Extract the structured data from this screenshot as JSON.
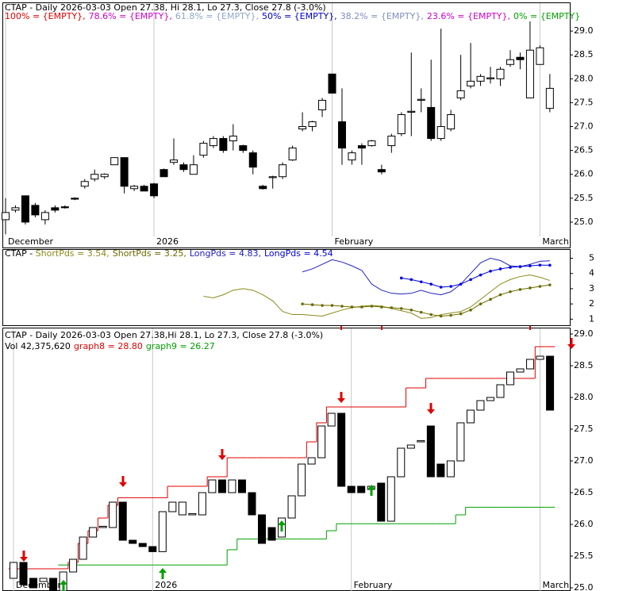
{
  "chart_data": [
    {
      "type": "candlestick",
      "title": "CTAP - Daily 2026-03-03 Open 27.38, Hi 28.1, Lo 27.3, Close 27.8 (-3.0%)",
      "legend": [
        {
          "label": "100% = {EMPTY},",
          "color": "#e00000"
        },
        {
          "label": "78.6% = {EMPTY},",
          "color": "#cc00cc"
        },
        {
          "label": "61.8% = {EMPTY},",
          "color": "#8fa8c8"
        },
        {
          "label": "50% = {EMPTY},",
          "color": "#0000cc"
        },
        {
          "label": "38.2% = {EMPTY},",
          "color": "#7f8fbf"
        },
        {
          "label": "23.6% = {EMPTY},",
          "color": "#cc00cc"
        },
        {
          "label": "0% = {EMPTY}",
          "color": "#00a000"
        }
      ],
      "categories": [
        "December",
        null,
        null,
        null,
        null,
        null,
        null,
        null,
        null,
        null,
        null,
        null,
        null,
        null,
        null,
        "2026",
        null,
        null,
        null,
        null,
        null,
        null,
        null,
        null,
        null,
        null,
        null,
        null,
        null,
        null,
        null,
        null,
        null,
        "February",
        null,
        null,
        null,
        null,
        null,
        null,
        null,
        null,
        null,
        null,
        null,
        null,
        null,
        null,
        null,
        null,
        null,
        null,
        null,
        null,
        "March",
        null
      ],
      "open": [
        25.05,
        25.25,
        25.55,
        25.35,
        25.05,
        25.3,
        25.32,
        25.5,
        25.75,
        25.9,
        25.95,
        26.2,
        26.35,
        25.7,
        25.75,
        25.8,
        26.1,
        26.25,
        26.2,
        26.0,
        26.4,
        26.6,
        26.75,
        26.7,
        26.6,
        26.45,
        25.75,
        25.93,
        25.95,
        26.3,
        26.95,
        27.0,
        27.35,
        28.1,
        27.1,
        26.3,
        26.6,
        26.6,
        26.1,
        26.6,
        26.85,
        27.3,
        27.55,
        27.4,
        26.75,
        26.95,
        27.6,
        27.85,
        27.95,
        28.0,
        28.0,
        28.3,
        28.45,
        27.6,
        28.3,
        27.38
      ],
      "high": [
        25.5,
        25.35,
        25.55,
        25.4,
        25.25,
        25.35,
        25.35,
        25.52,
        25.9,
        26.1,
        26.02,
        26.35,
        26.35,
        25.78,
        25.78,
        25.82,
        26.12,
        26.75,
        26.25,
        26.4,
        26.7,
        26.8,
        26.8,
        27.05,
        26.62,
        26.5,
        25.78,
        25.97,
        26.25,
        26.6,
        27.3,
        27.12,
        27.6,
        28.1,
        27.8,
        26.5,
        26.65,
        26.72,
        26.2,
        26.85,
        27.3,
        28.55,
        27.8,
        28.4,
        29.05,
        27.35,
        28.5,
        28.75,
        28.1,
        28.25,
        28.25,
        28.6,
        28.55,
        29.2,
        28.7,
        28.1
      ],
      "low": [
        24.75,
        25.2,
        24.95,
        25.1,
        24.95,
        25.2,
        25.28,
        25.46,
        25.7,
        25.85,
        25.9,
        26.2,
        25.6,
        25.65,
        25.65,
        25.5,
        25.95,
        26.2,
        26.05,
        26.0,
        26.35,
        26.55,
        26.45,
        26.5,
        26.45,
        26.0,
        25.68,
        25.7,
        25.9,
        26.28,
        26.9,
        26.9,
        27.2,
        27.7,
        26.2,
        26.2,
        26.2,
        26.58,
        26.0,
        26.45,
        26.8,
        26.8,
        27.3,
        26.7,
        26.7,
        26.9,
        27.55,
        27.8,
        27.85,
        27.9,
        27.85,
        28.25,
        28.2,
        27.6,
        28.3,
        27.3
      ],
      "close": [
        25.2,
        25.3,
        25.0,
        25.15,
        25.2,
        25.25,
        25.3,
        25.48,
        25.85,
        26.0,
        26.0,
        26.35,
        25.75,
        25.75,
        25.65,
        25.55,
        25.95,
        26.3,
        26.1,
        26.2,
        26.65,
        26.75,
        26.5,
        26.8,
        26.5,
        26.15,
        25.7,
        25.95,
        26.2,
        26.55,
        27.0,
        27.1,
        27.55,
        27.7,
        26.55,
        26.45,
        26.55,
        26.7,
        26.05,
        26.8,
        27.25,
        27.32,
        27.57,
        26.75,
        27.0,
        27.25,
        27.75,
        27.95,
        28.05,
        28.02,
        28.2,
        28.4,
        28.4,
        28.6,
        28.65,
        27.8
      ],
      "ylim": [
        24.7,
        29.6
      ],
      "yticks": [
        {
          "value": 25,
          "label": "25.0"
        },
        {
          "value": 25.5,
          "label": "25.5"
        },
        {
          "value": 26,
          "label": "26.0"
        },
        {
          "value": 26.5,
          "label": "26.5"
        },
        {
          "value": 27,
          "label": "27.0"
        },
        {
          "value": 27.5,
          "label": "27.5"
        },
        {
          "value": 28,
          "label": "28.0"
        },
        {
          "value": 28.5,
          "label": "28.5"
        },
        {
          "value": 29,
          "label": "29.0"
        }
      ]
    },
    {
      "type": "line",
      "title": "CTAP - ",
      "series": [
        {
          "name": "ShortPds = 3.54,",
          "color": "#8a8a1a",
          "markers": false,
          "values": [
            null,
            null,
            null,
            null,
            null,
            null,
            null,
            null,
            null,
            null,
            null,
            null,
            null,
            null,
            null,
            null,
            null,
            null,
            null,
            null,
            2.5,
            2.4,
            2.6,
            2.9,
            3.0,
            2.9,
            2.6,
            2.2,
            1.5,
            1.3,
            1.3,
            1.25,
            1.2,
            1.4,
            1.6,
            1.75,
            1.85,
            1.9,
            1.85,
            1.7,
            1.55,
            1.4,
            1.05,
            1.1,
            1.3,
            1.4,
            1.5,
            1.8,
            2.3,
            2.8,
            3.3,
            3.6,
            3.8,
            3.9,
            3.75,
            3.54
          ]
        },
        {
          "name": "ShortPds = 3.25,",
          "color": "#6b6b00",
          "markers": true,
          "values": [
            null,
            null,
            null,
            null,
            null,
            null,
            null,
            null,
            null,
            null,
            null,
            null,
            null,
            null,
            null,
            null,
            null,
            null,
            null,
            null,
            null,
            null,
            null,
            null,
            null,
            null,
            null,
            null,
            null,
            null,
            2.0,
            1.95,
            1.9,
            1.9,
            1.85,
            1.8,
            1.8,
            1.85,
            1.8,
            1.75,
            1.7,
            1.6,
            1.45,
            1.3,
            1.2,
            1.25,
            1.35,
            1.6,
            2.0,
            2.3,
            2.6,
            2.8,
            2.95,
            3.05,
            3.15,
            3.25
          ]
        },
        {
          "name": "LongPds = 4.83,",
          "color": "#2020c0",
          "markers": false,
          "values": [
            null,
            null,
            null,
            null,
            null,
            null,
            null,
            null,
            null,
            null,
            null,
            null,
            null,
            null,
            null,
            null,
            null,
            null,
            null,
            null,
            null,
            null,
            null,
            null,
            null,
            null,
            null,
            null,
            null,
            null,
            4.1,
            4.3,
            4.6,
            4.9,
            4.75,
            4.5,
            4.2,
            3.3,
            2.9,
            2.7,
            2.65,
            2.7,
            2.9,
            2.7,
            2.6,
            2.8,
            3.3,
            4.0,
            4.7,
            5.0,
            4.85,
            4.5,
            4.45,
            4.6,
            4.8,
            4.83
          ]
        },
        {
          "name": "LongPds = 4.54",
          "color": "#0000e0",
          "markers": true,
          "values": [
            null,
            null,
            null,
            null,
            null,
            null,
            null,
            null,
            null,
            null,
            null,
            null,
            null,
            null,
            null,
            null,
            null,
            null,
            null,
            null,
            null,
            null,
            null,
            null,
            null,
            null,
            null,
            null,
            null,
            null,
            null,
            null,
            null,
            null,
            null,
            null,
            null,
            null,
            null,
            null,
            3.7,
            3.6,
            3.45,
            3.3,
            3.1,
            3.15,
            3.3,
            3.6,
            3.9,
            4.15,
            4.3,
            4.4,
            4.45,
            4.5,
            4.55,
            4.54
          ]
        }
      ],
      "ylim": [
        0.6,
        5.6
      ],
      "yticks": [
        1,
        2,
        3,
        4,
        5
      ]
    },
    {
      "type": "bodies",
      "title": "CTAP - Daily 2026-03-03 Open 27.38,Hi 28.1, Lo 27.3, Close 27.8 (-3.0%)",
      "subtitle": "Vol 42,375,620",
      "categories": [
        "December",
        null,
        null,
        null,
        null,
        null,
        null,
        null,
        null,
        null,
        null,
        null,
        null,
        null,
        "2026",
        null,
        null,
        null,
        null,
        null,
        null,
        null,
        null,
        null,
        null,
        null,
        null,
        null,
        null,
        null,
        null,
        null,
        null,
        null,
        "February",
        null,
        null,
        null,
        null,
        null,
        null,
        null,
        null,
        null,
        null,
        null,
        null,
        null,
        null,
        null,
        null,
        null,
        null,
        "March",
        null
      ],
      "open": [
        25.15,
        25.4,
        25.15,
        25.1,
        25.15,
        24.95,
        25.25,
        25.45,
        25.8,
        25.95,
        25.95,
        26.35,
        25.75,
        25.7,
        25.65,
        25.57,
        26.2,
        26.15,
        26.15,
        26.15,
        26.5,
        26.7,
        26.5,
        26.7,
        26.5,
        26.15,
        25.95,
        25.8,
        26.1,
        26.45,
        26.95,
        27.05,
        27.55,
        27.75,
        26.6,
        26.6,
        26.55,
        26.65,
        26.05,
        26.75,
        27.2,
        27.3,
        27.55,
        26.95,
        26.75,
        27.0,
        27.6,
        27.8,
        27.95,
        28.0,
        28.2,
        28.4,
        28.45,
        28.6,
        28.65
      ],
      "close": [
        25.4,
        25.05,
        25.0,
        25.15,
        24.95,
        25.25,
        25.45,
        25.8,
        25.95,
        25.97,
        26.35,
        25.75,
        25.7,
        25.65,
        25.57,
        26.2,
        26.35,
        26.35,
        26.17,
        26.5,
        26.7,
        26.5,
        26.7,
        26.5,
        26.15,
        25.7,
        25.75,
        26.1,
        26.45,
        26.95,
        27.05,
        27.55,
        27.75,
        26.6,
        26.5,
        26.5,
        26.6,
        26.05,
        26.75,
        27.2,
        27.25,
        27.32,
        26.75,
        26.75,
        27.0,
        27.6,
        27.8,
        27.95,
        28.0,
        28.2,
        28.4,
        28.45,
        28.6,
        28.65,
        27.8
      ],
      "series": [
        {
          "name": "graph8 = 28.80",
          "color": "#e00000",
          "values": [
            25.3,
            25.3,
            25.3,
            25.3,
            25.3,
            25.3,
            25.4,
            25.7,
            25.9,
            26.1,
            26.3,
            26.42,
            26.42,
            26.42,
            26.42,
            26.42,
            26.6,
            26.6,
            26.6,
            26.6,
            26.75,
            26.75,
            27.05,
            27.05,
            27.05,
            27.05,
            27.05,
            27.05,
            27.05,
            27.05,
            27.3,
            27.6,
            27.85,
            27.85,
            27.85,
            27.85,
            27.85,
            27.85,
            27.85,
            27.85,
            28.15,
            28.15,
            28.3,
            28.3,
            28.3,
            28.3,
            28.3,
            28.3,
            28.3,
            28.3,
            28.3,
            28.3,
            28.3,
            28.8,
            28.8
          ]
        },
        {
          "name": "graph9 = 26.27",
          "color": "#00a000",
          "values": [
            null,
            null,
            null,
            null,
            null,
            25.36,
            25.36,
            25.36,
            25.36,
            25.36,
            25.36,
            25.36,
            25.36,
            25.36,
            25.36,
            25.36,
            25.36,
            25.36,
            25.36,
            25.36,
            25.36,
            25.36,
            25.6,
            25.77,
            25.77,
            25.77,
            25.77,
            25.77,
            25.77,
            25.77,
            25.77,
            25.77,
            25.9,
            26.01,
            26.01,
            26.01,
            26.01,
            26.01,
            26.01,
            26.01,
            26.01,
            26.01,
            26.01,
            26.01,
            26.01,
            26.15,
            26.27,
            26.27,
            26.27,
            26.27,
            26.27,
            26.27,
            26.27,
            26.27,
            26.27
          ]
        }
      ],
      "ylim": [
        24.95,
        29.1
      ],
      "yticks": [
        {
          "value": 25,
          "label": "25.0"
        },
        {
          "value": 25.5,
          "label": "25.5"
        },
        {
          "value": 26,
          "label": "26.0"
        },
        {
          "value": 26.5,
          "label": "26.5"
        },
        {
          "value": 27,
          "label": "27.0"
        },
        {
          "value": 27.5,
          "label": "27.5"
        },
        {
          "value": 28,
          "label": "28.0"
        },
        {
          "value": 28.5,
          "label": "28.5"
        },
        {
          "value": 29,
          "label": "29.0"
        }
      ]
    }
  ]
}
